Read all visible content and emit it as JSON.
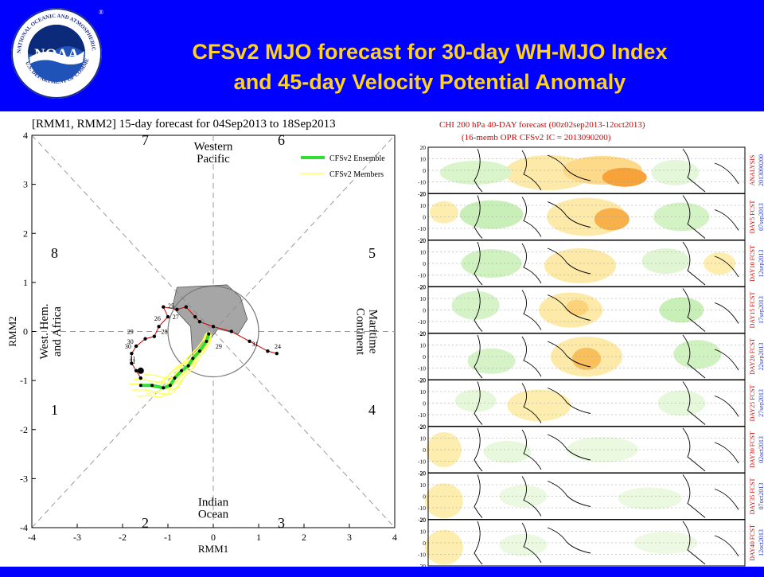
{
  "header": {
    "title_line1": "CFSv2 MJO forecast for 30-day WH-MJO Index",
    "title_line2": "and 45-day Velocity Potential Anomaly",
    "logo": {
      "icon": "noaa-logo-icon",
      "center_text": "NOAA",
      "ring_text": "NATIONAL OCEANIC AND ATMOSPHERIC ADMINISTRATION",
      "ring_text_bottom": "U.S. DEPARTMENT OF COMMERCE",
      "registered_mark": "®"
    },
    "bg_color": "#0000ff",
    "title_color": "#ffd21e"
  },
  "chart_data": [
    {
      "type": "line",
      "title": "[RMM1, RMM2] 15-day forecast for 04Sep2013 to 18Sep2013",
      "xlabel": "RMM1",
      "ylabel": "RMM2",
      "xlim": [
        -4,
        4
      ],
      "ylim": [
        -4,
        4
      ],
      "xticks": [
        "-4",
        "-3",
        "-2",
        "-1",
        "0",
        "1",
        "2",
        "3",
        "4"
      ],
      "yticks": [
        "-4",
        "-3",
        "-2",
        "-1",
        "0",
        "1",
        "2",
        "3",
        "4"
      ],
      "phases": [
        {
          "label": "1",
          "x": -3.5,
          "y": -1.6
        },
        {
          "label": "2",
          "x": -1.5,
          "y": -3.9
        },
        {
          "label": "3",
          "x": 1.5,
          "y": -3.9
        },
        {
          "label": "4",
          "x": 3.5,
          "y": -1.6
        },
        {
          "label": "5",
          "x": 3.5,
          "y": 1.6
        },
        {
          "label": "6",
          "x": 1.5,
          "y": 3.9
        },
        {
          "label": "7",
          "x": -1.5,
          "y": 3.9
        },
        {
          "label": "8",
          "x": -3.5,
          "y": 1.6
        }
      ],
      "region_labels": {
        "top": [
          "Western",
          "Pacific"
        ],
        "bottom": [
          "Indian",
          "Ocean"
        ],
        "left": [
          "West. Hem.",
          "and Africa"
        ],
        "right": [
          "Maritime",
          "Continent"
        ]
      },
      "legend": {
        "position": "top-right",
        "entries": [
          {
            "name": "CFSv2 Ensemble",
            "color": "#33dd33"
          },
          {
            "name": "CFSv2 Members",
            "color": "#ffff66"
          }
        ]
      },
      "observed": {
        "color": "#cc0000",
        "x": [
          1.4,
          1.2,
          0.8,
          0.4,
          0.0,
          -0.3,
          -0.4,
          -0.6,
          -0.8,
          -1.1,
          -1.0,
          -1.2,
          -1.3,
          -1.5,
          -1.7,
          -1.8,
          -1.8,
          -1.7,
          -1.6
        ],
        "y": [
          -0.45,
          -0.4,
          -0.2,
          0.0,
          0.1,
          0.2,
          0.3,
          0.5,
          0.45,
          0.5,
          0.3,
          0.1,
          -0.1,
          -0.15,
          -0.3,
          -0.45,
          -0.65,
          -0.8,
          -0.95
        ],
        "day_labels": [
          "24",
          "31",
          "29",
          "30",
          "31",
          "26",
          "27",
          "28",
          "25",
          "29",
          "30",
          "31"
        ]
      },
      "ensemble": {
        "name": "CFSv2 Ensemble",
        "color": "#33dd33",
        "x": [
          -0.1,
          -0.15,
          -0.3,
          -0.45,
          -0.55,
          -0.7,
          -0.85,
          -0.95,
          -1.1,
          -1.35,
          -1.6
        ],
        "y": [
          -0.05,
          -0.2,
          -0.4,
          -0.55,
          -0.7,
          -0.8,
          -0.95,
          -1.1,
          -1.15,
          -1.1,
          -1.1
        ]
      },
      "circle_radius": 1,
      "spread_color": "#888888"
    },
    {
      "type": "heatmap",
      "title_line1": "CHI 200 hPa 40-DAY forecast (00z02sep2013-12oct2013)",
      "title_line2": "(16-memb OPR CFSv2 IC = 2013090200)",
      "lat_ticks": [
        "20",
        "10",
        "0",
        "-10",
        "-20"
      ],
      "panels": [
        {
          "label": "ANALYSIS",
          "date": "2013090200"
        },
        {
          "label": "DAY5 FCST",
          "date": "07sep2013"
        },
        {
          "label": "DAY10 FCST",
          "date": "12sep2013"
        },
        {
          "label": "DAY15 FCST",
          "date": "17sep2013"
        },
        {
          "label": "DAY20 FCST",
          "date": "22sep2013"
        },
        {
          "label": "DAY25 FCST",
          "date": "27sep2013"
        },
        {
          "label": "DAY30 FCST",
          "date": "02oct2013"
        },
        {
          "label": "DAY35 FCST",
          "date": "07oct2013"
        },
        {
          "label": "DAY40 FCST",
          "date": "12oct2013"
        }
      ],
      "title_color": "#dd0000",
      "panel_label_color": "#dd0000",
      "date_color": "#2233cc"
    }
  ]
}
